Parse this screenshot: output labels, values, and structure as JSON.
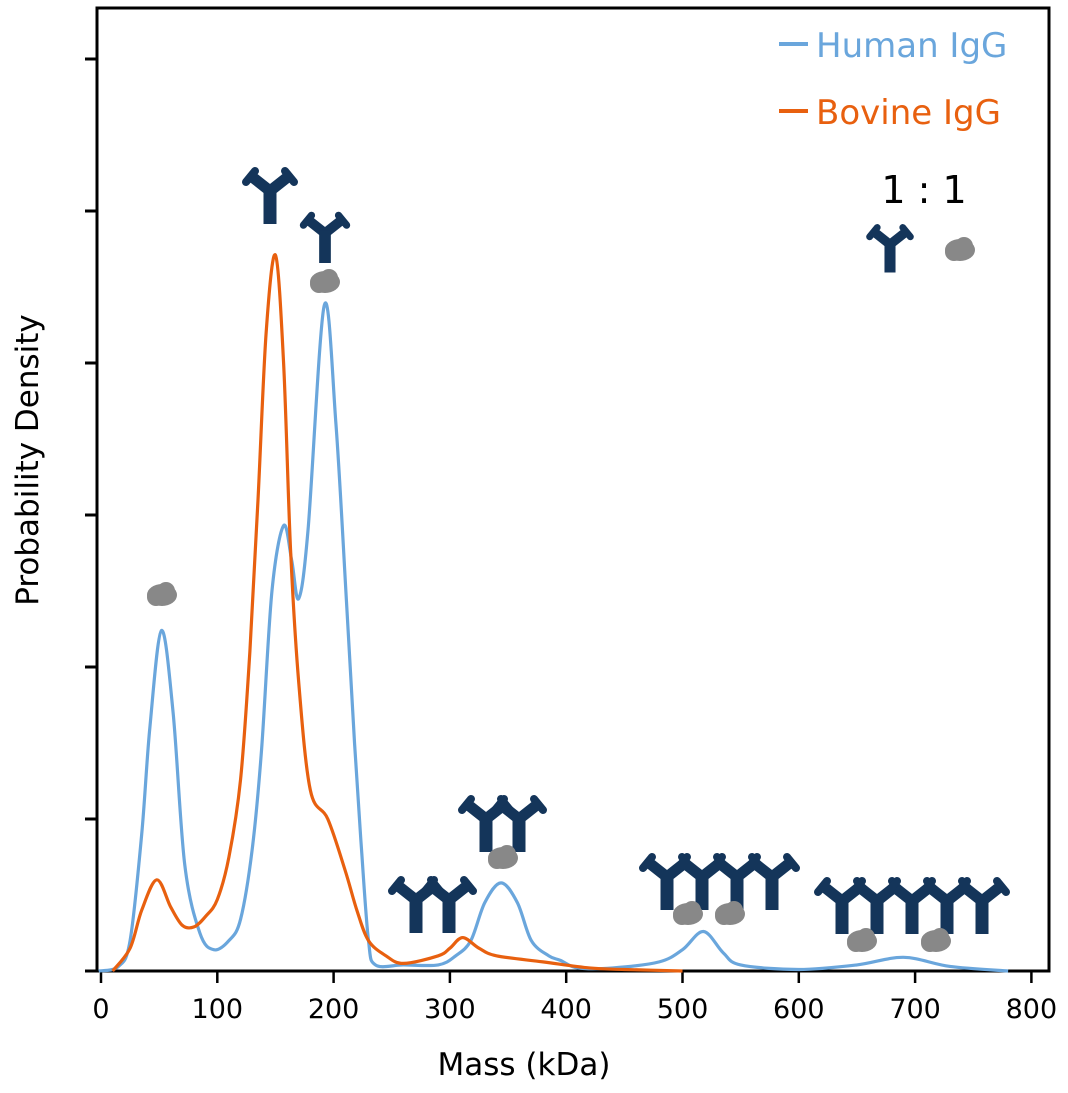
{
  "chart_data": {
    "type": "line",
    "title": "",
    "xlabel": "Mass (kDa)",
    "ylabel": "Probability Density",
    "xlim": [
      0,
      820
    ],
    "ylim": [
      0,
      6.32
    ],
    "xticks": [
      0,
      100,
      200,
      300,
      400,
      500,
      600,
      700,
      800
    ],
    "yticks": [
      0,
      1,
      2,
      3,
      4,
      5,
      6
    ],
    "ytick_labels_shown": false,
    "grid": false,
    "legend_position": "top-right",
    "series": [
      {
        "name": "Human IgG",
        "color": "#6aa6dc",
        "x": [
          -2,
          15,
          25,
          35,
          42,
          52,
          62,
          72,
          85,
          97,
          110,
          120,
          130,
          138,
          147,
          157,
          164,
          170,
          178,
          192,
          202,
          211,
          218,
          224,
          230,
          236,
          260,
          290,
          305,
          318,
          330,
          344,
          358,
          370,
          385,
          395,
          410,
          440,
          480,
          500,
          518,
          535,
          550,
          600,
          650,
          690,
          730,
          780
        ],
        "y": [
          0,
          0.03,
          0.2,
          0.9,
          1.6,
          2.24,
          1.7,
          0.7,
          0.25,
          0.14,
          0.2,
          0.34,
          0.8,
          1.45,
          2.5,
          2.93,
          2.7,
          2.45,
          2.9,
          4.38,
          3.6,
          2.44,
          1.5,
          0.8,
          0.2,
          0.04,
          0.04,
          0.04,
          0.1,
          0.2,
          0.45,
          0.58,
          0.45,
          0.2,
          0.1,
          0.07,
          0.02,
          0.02,
          0.06,
          0.14,
          0.26,
          0.12,
          0.04,
          0.01,
          0.04,
          0.09,
          0.03,
          0
        ]
      },
      {
        "name": "Bovine IgG",
        "color": "#e8600f",
        "x": [
          10,
          25,
          35,
          48,
          60,
          70,
          80,
          90,
          100,
          110,
          120,
          128,
          135,
          142,
          150,
          157,
          163,
          170,
          180,
          195,
          210,
          220,
          230,
          245,
          260,
          290,
          300,
          311,
          325,
          340,
          380,
          420,
          450,
          500
        ],
        "y": [
          0,
          0.15,
          0.4,
          0.6,
          0.42,
          0.3,
          0.29,
          0.36,
          0.47,
          0.75,
          1.26,
          2.1,
          3.1,
          4.2,
          4.71,
          4.0,
          2.77,
          1.9,
          1.19,
          1.0,
          0.66,
          0.4,
          0.2,
          0.1,
          0.05,
          0.1,
          0.15,
          0.22,
          0.15,
          0.1,
          0.06,
          0.02,
          0.01,
          0
        ]
      }
    ],
    "annotations": {
      "ratio_text": "1 : 1",
      "icons": [
        "antibody-icon",
        "antigen-icon"
      ]
    },
    "colors": {
      "antibody": "#14355a",
      "antigen": "#888888",
      "axis": "#000000"
    }
  }
}
